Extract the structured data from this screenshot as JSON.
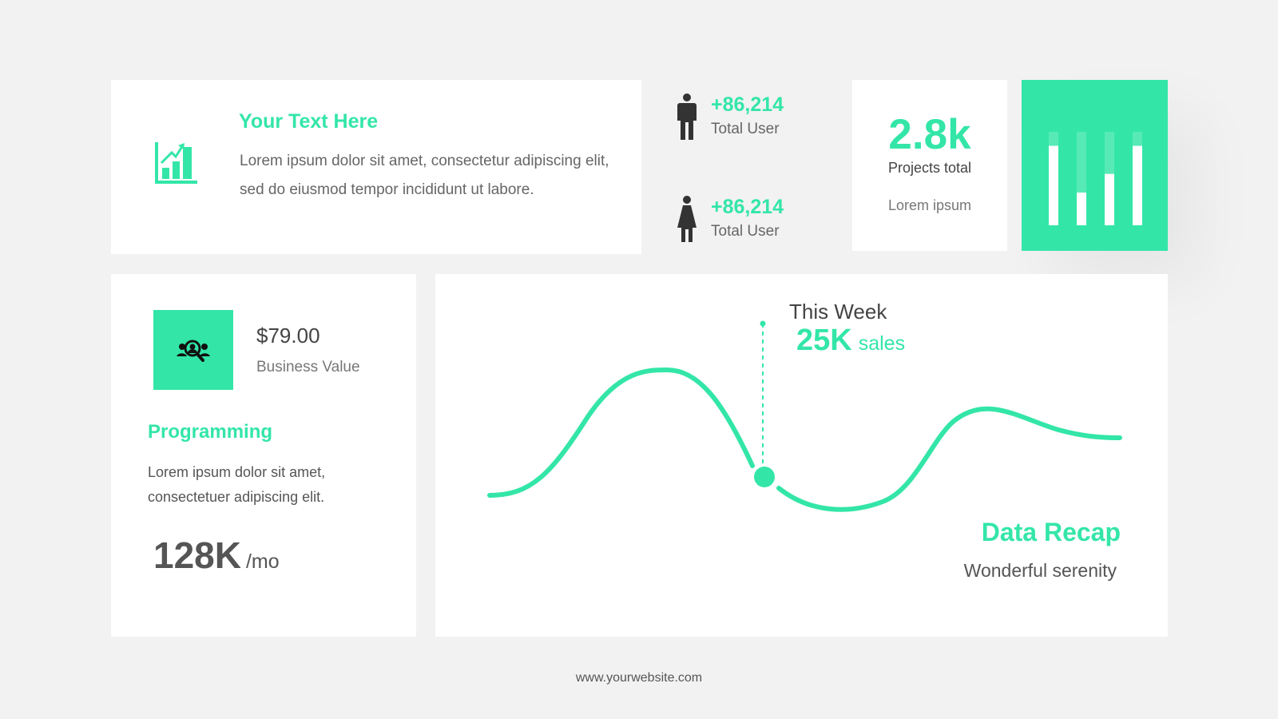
{
  "colors": {
    "accent": "#33e6a8",
    "background": "#f2f2f2",
    "card": "#ffffff",
    "text": "#555555"
  },
  "intro": {
    "icon": "growth-chart-icon",
    "title": "Your Text Here",
    "body": "Lorem ipsum dolor sit amet, consectetur adipiscing elit, sed do eiusmod tempor incididunt ut labore."
  },
  "users": [
    {
      "icon": "male-person-icon",
      "value": "+86,214",
      "label": "Total User"
    },
    {
      "icon": "female-person-icon",
      "value": "+86,214",
      "label": "Total User"
    }
  ],
  "projects": {
    "value": "2.8k",
    "label": "Projects total",
    "sub": "Lorem ipsum"
  },
  "bars": {
    "icon": "bar-chart-icon",
    "levels": [
      0.85,
      0.35,
      0.55,
      0.85
    ]
  },
  "program": {
    "icon": "team-search-icon",
    "price": "$79.00",
    "price_label": "Business Value",
    "title": "Programming",
    "body": "Lorem ipsum dolor sit amet, consectetuer adipiscing elit.",
    "metric": "128K",
    "metric_unit": "/mo"
  },
  "chart": {
    "marker_title": "This Week",
    "marker_value": "25K",
    "marker_unit": "sales",
    "recap_title": "Data Recap",
    "recap_body": "Wonderful serenity"
  },
  "footer": "www.yourwebsite.com"
}
